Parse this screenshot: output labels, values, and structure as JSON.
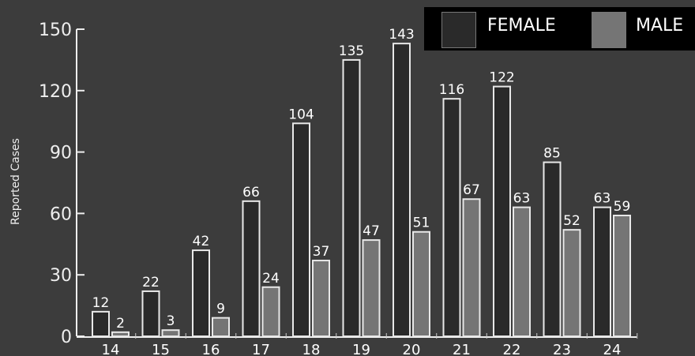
{
  "chart_data": {
    "type": "bar",
    "title": "",
    "xlabel": "",
    "ylabel": "Reported Cases",
    "ylim": [
      0,
      150
    ],
    "yticks": [
      0,
      30,
      60,
      90,
      120,
      150
    ],
    "categories": [
      "14",
      "15",
      "16",
      "17",
      "18",
      "19",
      "20",
      "21",
      "22",
      "23",
      "24"
    ],
    "series": [
      {
        "name": "FEMALE",
        "color": "#2a2a2a",
        "values": [
          12,
          22,
          42,
          66,
          104,
          135,
          143,
          116,
          122,
          85,
          63
        ]
      },
      {
        "name": "MALE",
        "color": "#757575",
        "values": [
          2,
          3,
          9,
          24,
          37,
          47,
          51,
          67,
          63,
          52,
          59
        ]
      }
    ],
    "legend": {
      "position": "top-right"
    },
    "grid": false
  }
}
